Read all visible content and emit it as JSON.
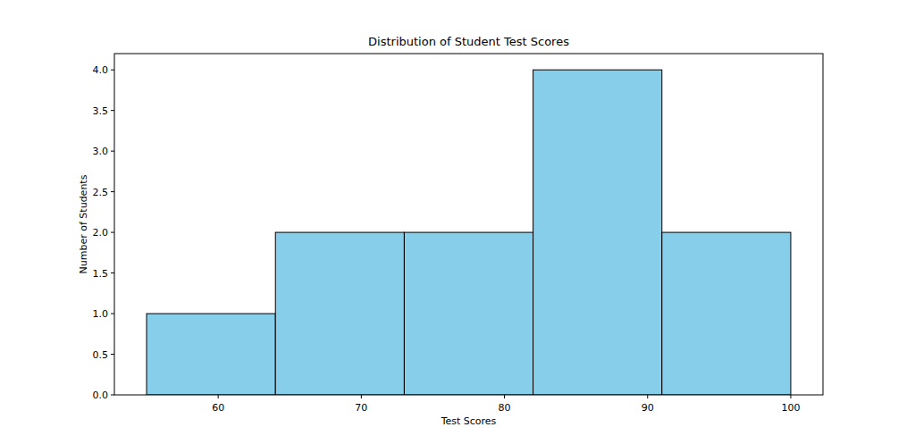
{
  "chart_data": {
    "type": "histogram",
    "title": "Distribution of Student Test Scores",
    "x_label": "Test Scores",
    "y_label": "Number of Students",
    "bins": [
      55,
      64,
      73,
      82,
      91,
      100
    ],
    "values": [
      1,
      2,
      2,
      4,
      2
    ],
    "color": "#87ceeb",
    "xlim": [
      52.75,
      102.25
    ],
    "xticks": [
      60,
      70,
      80,
      90,
      100
    ],
    "ylim": [
      0,
      4.2
    ],
    "yticks": [
      {
        "value": 0,
        "label": "0.0"
      },
      {
        "value": 0.5,
        "label": "0.5"
      },
      {
        "value": 1,
        "label": "1.0"
      },
      {
        "value": 1.5,
        "label": "1.5"
      },
      {
        "value": 2,
        "label": "2.0"
      },
      {
        "value": 2.5,
        "label": "2.5"
      },
      {
        "value": 3,
        "label": "3.0"
      },
      {
        "value": 3.5,
        "label": "3.5"
      },
      {
        "value": 4,
        "label": "4.0"
      }
    ],
    "grid": false
  }
}
